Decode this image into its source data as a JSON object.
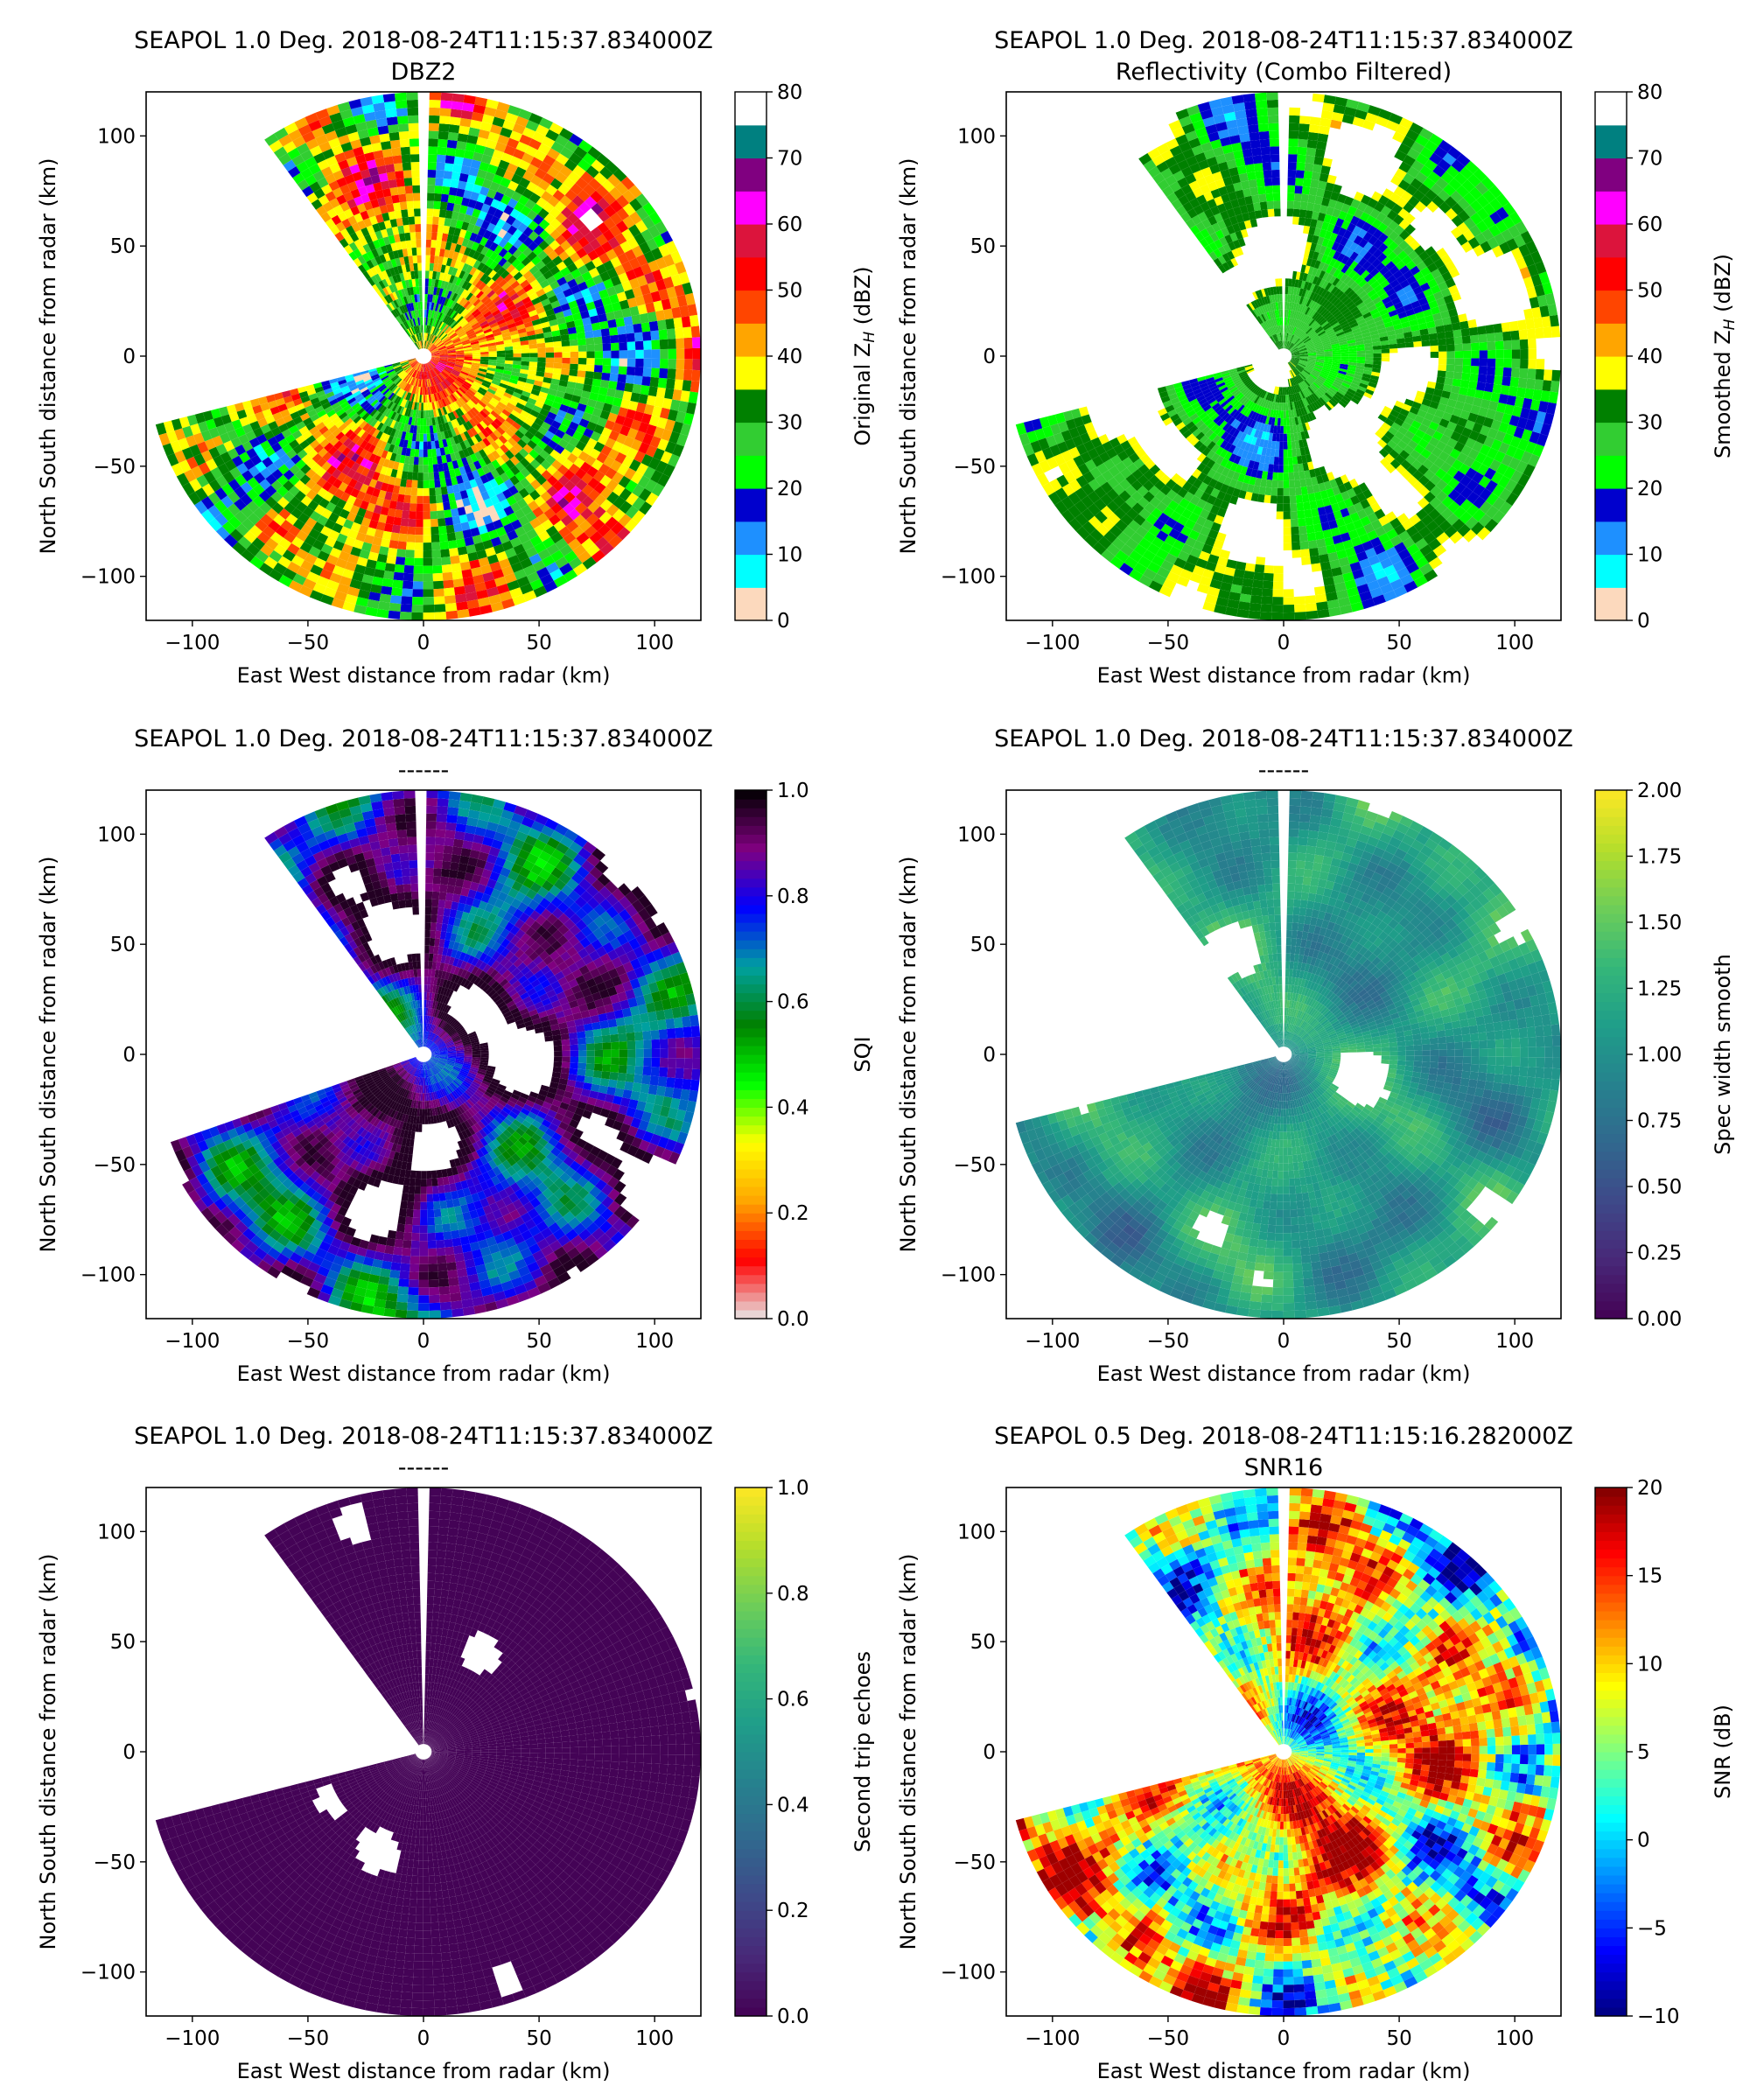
{
  "chart_data": [
    {
      "type": "heatmap",
      "title": "SEAPOL 1.0 Deg. 2018-08-24T11:15:37.834000Z",
      "subtitle": "DBZ2",
      "xlabel": "East West distance from radar (km)",
      "ylabel": "North South distance from radar (km)",
      "xlim": [
        -120,
        120
      ],
      "ylim": [
        -120,
        120
      ],
      "xticks": [
        -100,
        -50,
        0,
        50,
        100
      ],
      "yticks": [
        -100,
        -50,
        0,
        50,
        100
      ],
      "colorbar": {
        "label_main": "Original Z",
        "label_sub": "H",
        "label_unit": " (dBZ)",
        "range": [
          0,
          80
        ],
        "ticks": [
          0,
          10,
          20,
          30,
          40,
          50,
          60,
          70,
          80
        ],
        "discrete": true,
        "colors": [
          "#fcd9bd",
          "#00ffff",
          "#1e90ff",
          "#0000cd",
          "#00ff00",
          "#32cd32",
          "#008000",
          "#ffff00",
          "#ffa500",
          "#ff4500",
          "#ff0000",
          "#dc143c",
          "#ff00ff",
          "#800080",
          "#008080",
          "#ffffff"
        ]
      },
      "field": {
        "palette": "dbz",
        "seed": 11,
        "coverage": 0.93,
        "bias": 0.42,
        "spread": 0.2,
        "noise": 0.1,
        "scan": "wide"
      },
      "grid": false
    },
    {
      "type": "heatmap",
      "title": "SEAPOL 1.0 Deg. 2018-08-24T11:15:37.834000Z",
      "subtitle": "Reflectivity (Combo Filtered)",
      "xlabel": "East West distance from radar (km)",
      "ylabel": "North South distance from radar (km)",
      "xlim": [
        -120,
        120
      ],
      "ylim": [
        -120,
        120
      ],
      "xticks": [
        -100,
        -50,
        0,
        50,
        100
      ],
      "yticks": [
        -100,
        -50,
        0,
        50,
        100
      ],
      "colorbar": {
        "label_main": "Smoothed Z",
        "label_sub": "H",
        "label_unit": " (dBZ)",
        "range": [
          0,
          80
        ],
        "ticks": [
          0,
          10,
          20,
          30,
          40,
          50,
          60,
          70,
          80
        ],
        "discrete": true,
        "colors": [
          "#fcd9bd",
          "#00ffff",
          "#1e90ff",
          "#0000cd",
          "#00ff00",
          "#32cd32",
          "#008000",
          "#ffff00",
          "#ffa500",
          "#ff4500",
          "#ff0000",
          "#dc143c",
          "#ff00ff",
          "#800080",
          "#008080",
          "#ffffff"
        ]
      },
      "field": {
        "palette": "dbz",
        "seed": 23,
        "coverage": 0.6,
        "bias": 0.38,
        "spread": 0.14,
        "noise": 0.03,
        "scan": "wide"
      },
      "grid": false
    },
    {
      "type": "heatmap",
      "title": "SEAPOL 1.0 Deg. 2018-08-24T11:15:37.834000Z",
      "subtitle": "------",
      "xlabel": "East West distance from radar (km)",
      "ylabel": "North South distance from radar (km)",
      "xlim": [
        -120,
        120
      ],
      "ylim": [
        -120,
        120
      ],
      "xticks": [
        -100,
        -50,
        0,
        50,
        100
      ],
      "yticks": [
        -100,
        -50,
        0,
        50,
        100
      ],
      "colorbar": {
        "label_main": "SQI",
        "label_sub": "",
        "label_unit": "",
        "range": [
          0,
          1
        ],
        "ticks": [
          "0.0",
          "0.2",
          "0.4",
          "0.6",
          "0.8",
          "1.0"
        ],
        "discrete": false,
        "colors": [
          "#e6e6e6",
          "#ff0000",
          "#ffa500",
          "#ffff00",
          "#00ff00",
          "#008000",
          "#00a0a0",
          "#0000ff",
          "#800080",
          "#000000"
        ]
      },
      "field": {
        "palette": "sqi",
        "seed": 37,
        "coverage": 0.68,
        "bias": 0.78,
        "spread": 0.22,
        "noise": 0.03,
        "scan": "narrow"
      },
      "grid": false
    },
    {
      "type": "heatmap",
      "title": "SEAPOL 1.0 Deg. 2018-08-24T11:15:37.834000Z",
      "subtitle": "------",
      "xlabel": "East West distance from radar (km)",
      "ylabel": "North South distance from radar (km)",
      "xlim": [
        -120,
        120
      ],
      "ylim": [
        -120,
        120
      ],
      "xticks": [
        -100,
        -50,
        0,
        50,
        100
      ],
      "yticks": [
        -100,
        -50,
        0,
        50,
        100
      ],
      "colorbar": {
        "label_main": "Spec width smooth",
        "label_sub": "",
        "label_unit": "",
        "range": [
          0,
          2
        ],
        "ticks": [
          "0.00",
          "0.25",
          "0.50",
          "0.75",
          "1.00",
          "1.25",
          "1.50",
          "1.75",
          "2.00"
        ],
        "discrete": false,
        "colors": [
          "#440154",
          "#482878",
          "#3e4989",
          "#31688e",
          "#26828e",
          "#1f9e89",
          "#35b779",
          "#6ece58",
          "#b5de2b",
          "#fde725"
        ]
      },
      "field": {
        "palette": "viridis",
        "seed": 53,
        "coverage": 0.8,
        "bias": 0.55,
        "spread": 0.14,
        "noise": 0.03,
        "scan": "wide"
      },
      "grid": false
    },
    {
      "type": "heatmap",
      "title": "SEAPOL 1.0 Deg. 2018-08-24T11:15:37.834000Z",
      "subtitle": "------",
      "xlabel": "East West distance from radar (km)",
      "ylabel": "North South distance from radar (km)",
      "xlim": [
        -120,
        120
      ],
      "ylim": [
        -120,
        120
      ],
      "xticks": [
        -100,
        -50,
        0,
        50,
        100
      ],
      "yticks": [
        -100,
        -50,
        0,
        50,
        100
      ],
      "colorbar": {
        "label_main": "Second trip echoes",
        "label_sub": "",
        "label_unit": "",
        "range": [
          0,
          1
        ],
        "ticks": [
          "0.0",
          "0.2",
          "0.4",
          "0.6",
          "0.8",
          "1.0"
        ],
        "discrete": false,
        "colors": [
          "#440154",
          "#482878",
          "#3e4989",
          "#31688e",
          "#26828e",
          "#1f9e89",
          "#35b779",
          "#6ece58",
          "#b5de2b",
          "#fde725"
        ]
      },
      "field": {
        "palette": "viridis",
        "seed": 71,
        "coverage": 0.82,
        "bias": 0.0,
        "spread": 0.0,
        "noise": 0.0,
        "scan": "wide"
      },
      "grid": false
    },
    {
      "type": "heatmap",
      "title": "SEAPOL 0.5 Deg. 2018-08-24T11:15:16.282000Z",
      "subtitle": "SNR16",
      "xlabel": "East West distance from radar (km)",
      "ylabel": "North South distance from radar (km)",
      "xlim": [
        -120,
        120
      ],
      "ylim": [
        -120,
        120
      ],
      "xticks": [
        -100,
        -50,
        0,
        50,
        100
      ],
      "yticks": [
        -100,
        -50,
        0,
        50,
        100
      ],
      "colorbar": {
        "label_main": "SNR (dB)",
        "label_sub": "",
        "label_unit": "",
        "range": [
          -10,
          20
        ],
        "ticks": [
          "−10",
          "−5",
          "0",
          "5",
          "10",
          "15",
          "20"
        ],
        "discrete": false,
        "colors": [
          "#00007f",
          "#0000ff",
          "#007fff",
          "#00ffff",
          "#7fff7f",
          "#ffff00",
          "#ff7f00",
          "#ff0000",
          "#7f0000"
        ]
      },
      "field": {
        "palette": "jet",
        "seed": 89,
        "coverage": 1.0,
        "bias": 0.7,
        "spread": 0.3,
        "noise": 0.12,
        "scan": "wide"
      },
      "grid": false
    }
  ]
}
